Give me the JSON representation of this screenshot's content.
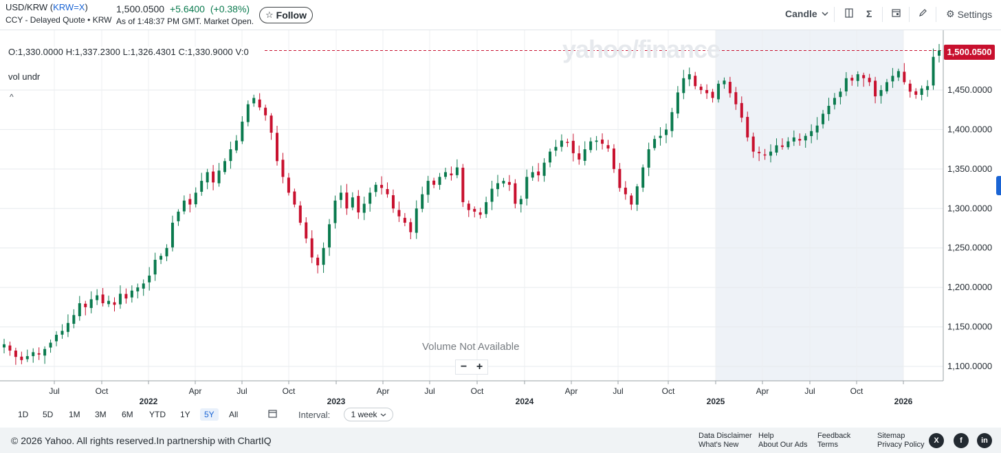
{
  "header": {
    "pair": "USD/KRW",
    "ticker": "KRW=X",
    "quote_type": "CCY - Delayed Quote • KRW",
    "price": "1,500.0500",
    "change": "+5.6400",
    "change_pct": "(+0.38%)",
    "as_of": "As of 1:48:37 PM GMT. Market Open.",
    "follow_label": "Follow",
    "chart_type_label": "Candle",
    "settings_label": "Settings"
  },
  "ohlc": {
    "text": "O:1,330.0000   H:1,337.2300   L:1,326.4301   C:1,330.9000   V:0"
  },
  "overlay": {
    "vol_label": "vol undr",
    "watermark": "yahoo/finance",
    "volume_na": "Volume Not Available",
    "zoom_out": "−",
    "zoom_in": "+",
    "last_price_flag": "1,500.0500"
  },
  "ranges": {
    "items": [
      "1D",
      "5D",
      "1M",
      "3M",
      "6M",
      "YTD",
      "1Y",
      "5Y",
      "All"
    ],
    "active": "5Y",
    "interval_label": "Interval:",
    "interval_value": "1 week"
  },
  "footer": {
    "copyright": "© 2026 Yahoo. All rights reserved.In partnership with ChartIQ",
    "links": [
      "Data Disclaimer",
      "What's New",
      "Help",
      "About Our Ads",
      "Feedback",
      "Terms",
      "Sitemap",
      "Privacy Policy"
    ]
  },
  "colors": {
    "up": "#0a7a4e",
    "down": "#c8102e",
    "accent": "#1a64d4",
    "shade": "#eef2f7"
  },
  "chart_data": {
    "type": "candlestick",
    "y_ticks": [
      "1,100.0000",
      "1,150.0000",
      "1,200.0000",
      "1,250.0000",
      "1,300.0000",
      "1,350.0000",
      "1,400.0000",
      "1,450.0000",
      "1,500.0500"
    ],
    "ylim": [
      1080,
      1520
    ],
    "month_ticks": [
      "Jul",
      "Oct",
      "Apr",
      "Jul",
      "Oct",
      "Apr",
      "Jul",
      "Oct",
      "Apr",
      "Jul",
      "Oct",
      "Apr",
      "Jul",
      "Oct"
    ],
    "year_ticks": [
      "2022",
      "2023",
      "2024",
      "2025",
      "2026"
    ],
    "last_price": 1500.05,
    "closes": [
      1128,
      1120,
      1112,
      1108,
      1113,
      1118,
      1115,
      1122,
      1130,
      1140,
      1145,
      1155,
      1165,
      1180,
      1175,
      1185,
      1190,
      1180,
      1183,
      1178,
      1192,
      1186,
      1196,
      1200,
      1205,
      1215,
      1235,
      1240,
      1250,
      1282,
      1296,
      1310,
      1305,
      1320,
      1335,
      1346,
      1333,
      1348,
      1360,
      1375,
      1386,
      1410,
      1432,
      1440,
      1428,
      1418,
      1396,
      1360,
      1340,
      1320,
      1305,
      1282,
      1262,
      1238,
      1228,
      1250,
      1280,
      1310,
      1320,
      1300,
      1314,
      1295,
      1306,
      1320,
      1330,
      1326,
      1318,
      1300,
      1290,
      1282,
      1270,
      1300,
      1318,
      1335,
      1330,
      1340,
      1346,
      1342,
      1352,
      1308,
      1298,
      1296,
      1292,
      1308,
      1325,
      1332,
      1335,
      1330,
      1306,
      1312,
      1340,
      1346,
      1342,
      1358,
      1372,
      1378,
      1386,
      1384,
      1370,
      1362,
      1375,
      1385,
      1386,
      1382,
      1376,
      1350,
      1326,
      1318,
      1305,
      1328,
      1352,
      1375,
      1388,
      1392,
      1400,
      1422,
      1447,
      1465,
      1470,
      1455,
      1450,
      1446,
      1440,
      1458,
      1462,
      1446,
      1432,
      1415,
      1390,
      1372,
      1370,
      1368,
      1372,
      1380,
      1378,
      1385,
      1390,
      1386,
      1392,
      1398,
      1405,
      1420,
      1430,
      1440,
      1448,
      1465,
      1462,
      1470,
      1465,
      1460,
      1442,
      1450,
      1460,
      1468,
      1474,
      1460,
      1448,
      1444,
      1452,
      1455,
      1492,
      1500
    ]
  }
}
